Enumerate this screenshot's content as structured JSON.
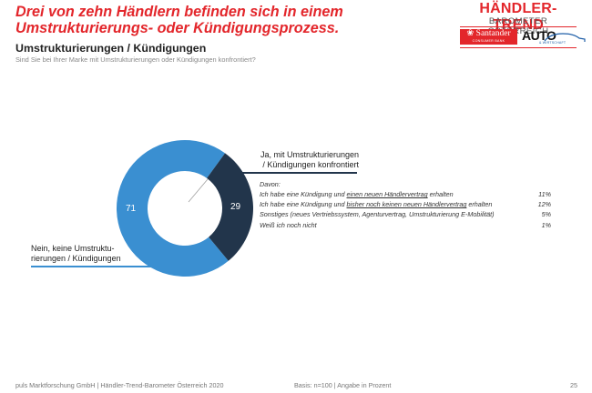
{
  "header": {
    "headline": "Drei von zehn Händlern befinden sich in einem Umstrukturierungs- oder Kündigungsprozess.",
    "subtitle": "Umstrukturierungen / Kündigungen",
    "question": "Sind Sie bei Ihrer Marke mit Umstrukturierungen oder Kündigungen konfrontiert?"
  },
  "brand": {
    "title": "HÄNDLER-TREND",
    "subtitle": "BAROMETER ÖSTERREICH",
    "sponsor1": "Santander",
    "sponsor1_sub": "CONSUMER BANK",
    "sponsor2": "AUTO",
    "sponsor2_sub": "& WIRTSCHAFT"
  },
  "colors": {
    "accent_red": "#e3262b",
    "slice_no": "#3a8fd1",
    "slice_yes": "#22354b"
  },
  "chart_data": {
    "type": "pie",
    "variant": "donut",
    "title": "Umstrukturierungen / Kündigungen",
    "unit": "%",
    "categories": [
      "Nein, keine Umstrukturierungen / Kündigungen",
      "Ja, mit Umstrukturierungen / Kündigungen konfrontiert"
    ],
    "values": [
      71,
      29
    ],
    "labels": {
      "yes_line1": "Ja, mit Umstrukturierungen",
      "yes_line2": "/ Kündigungen konfrontiert",
      "no_line1": "Nein, keine Umstruktu-",
      "no_line2": "rierungen / Kündigungen",
      "no_value": "71",
      "yes_value": "29"
    },
    "breakdown_title": "Davon:",
    "breakdown": [
      {
        "pre": "Ich habe eine Kündigung und ",
        "underlined": "einen neuen Händlervertrag",
        "post": " erhalten",
        "value": "11%"
      },
      {
        "pre": "Ich habe eine Kündigung und ",
        "underlined": "bisher noch keinen neuen Händlervertrag",
        "post": " erhalten",
        "value": "12%"
      },
      {
        "pre": "Sonstiges (neues Vertriebssystem, Agenturvertrag, Umstrukturierung E-Mobilität)",
        "underlined": "",
        "post": "",
        "value": "5%"
      },
      {
        "pre": "Weiß ich noch nicht",
        "underlined": "",
        "post": "",
        "value": "1%"
      }
    ]
  },
  "footer": {
    "source": "puls Marktforschung GmbH | Händler-Trend-Barometer Österreich 2020",
    "basis": "Basis: n=100 | Angabe in Prozent",
    "page": "25"
  }
}
